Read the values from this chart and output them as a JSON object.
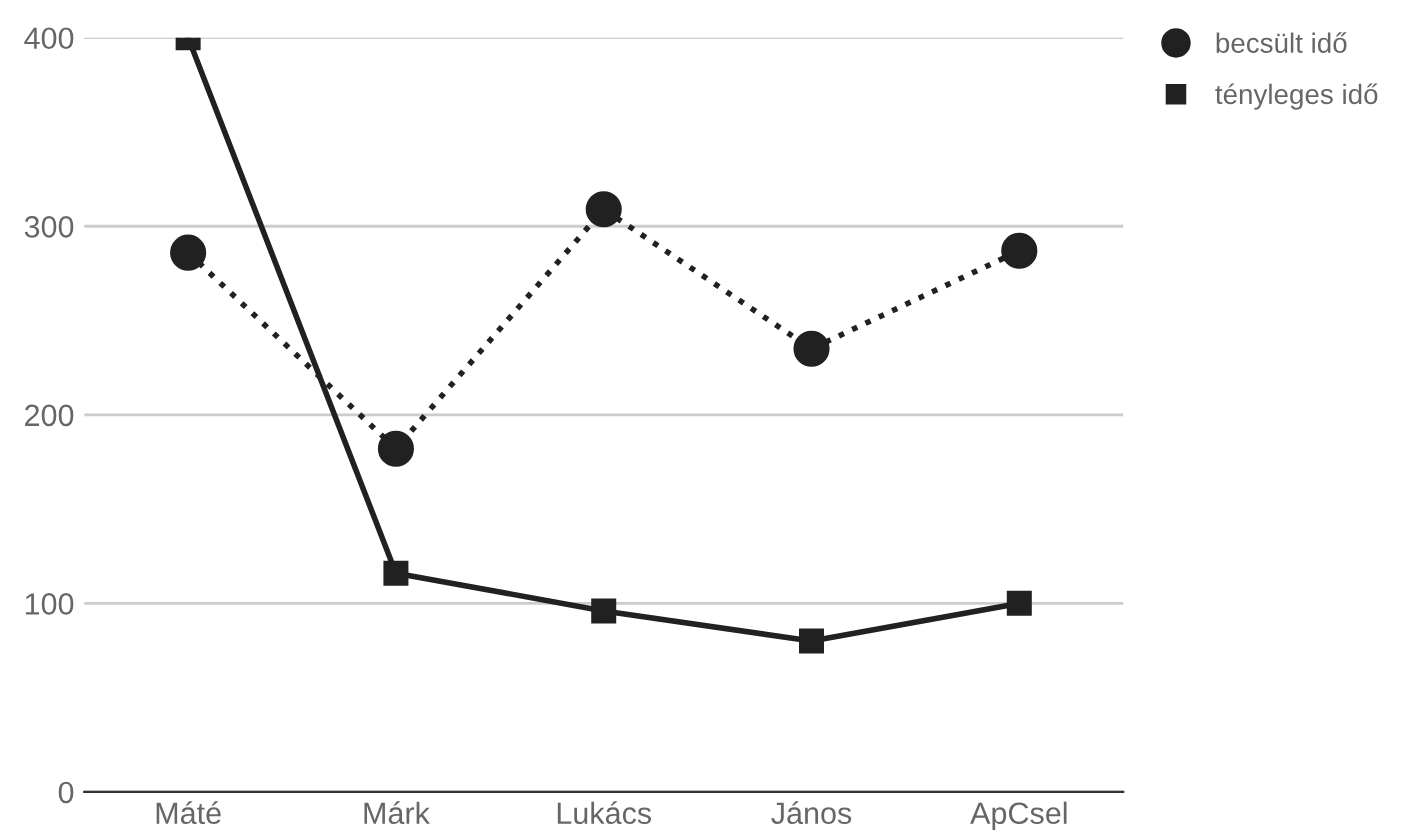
{
  "chart_data": {
    "type": "line",
    "categories": [
      "Máté",
      "Márk",
      "Lukács",
      "János",
      "ApCsel"
    ],
    "series": [
      {
        "name": "becsült idő",
        "color": "#212121",
        "marker": "circle",
        "line_style": "dotted",
        "values": [
          286,
          182,
          309,
          235,
          287
        ]
      },
      {
        "name": "tényleges idő",
        "color": "#212121",
        "marker": "square",
        "line_style": "solid",
        "values": [
          400,
          116,
          96,
          80,
          100
        ]
      }
    ],
    "ylim": [
      0,
      400
    ],
    "yticks": [
      0,
      100,
      200,
      300,
      400
    ],
    "grid": "y",
    "legend": "top right"
  }
}
